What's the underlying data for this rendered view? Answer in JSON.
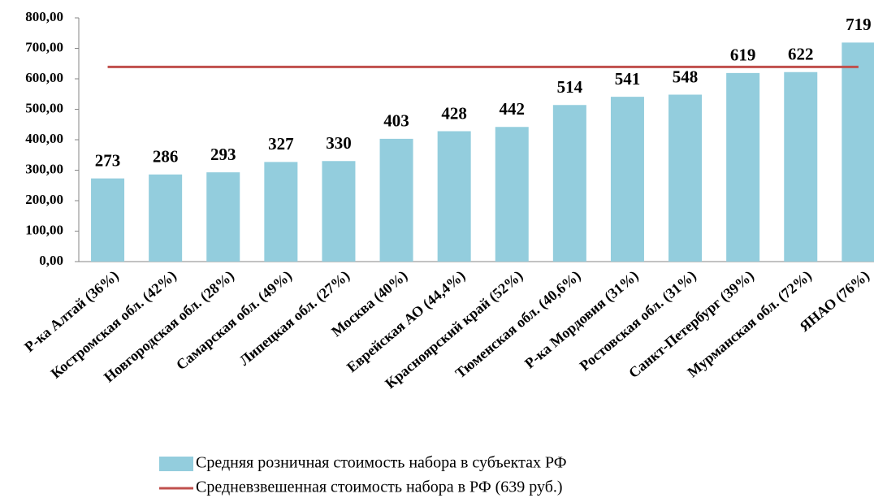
{
  "chart_data": {
    "type": "bar",
    "categories": [
      "Р-ка Алтай (36%)",
      "Костромская обл. (42%)",
      "Новгородская обл. (28%)",
      "Самарская обл. (49%)",
      "Липецкая обл. (27%)",
      "Москва (40%)",
      "Еврейская АО (44,4%)",
      "Красноярский край (52%)",
      "Тюменская обл. (40,6%)",
      "Р-ка Мордовия (31%)",
      "Ростовская обл. (31%)",
      "Санкт-Петербург (39%)",
      "Мурманская обл. (72%)",
      "ЯНАО (76%)"
    ],
    "series": [
      {
        "name": "Средняя розничная стоимость набора в субъектах РФ",
        "type": "bar",
        "color": "#93cddd",
        "values": [
          273,
          286,
          293,
          327,
          330,
          403,
          428,
          442,
          514,
          541,
          548,
          619,
          622,
          719
        ]
      },
      {
        "name": "Средневзвешенная стоимость набора в РФ (639 руб.)",
        "type": "line",
        "color": "#c0504d",
        "values": [
          639,
          639,
          639,
          639,
          639,
          639,
          639,
          639,
          639,
          639,
          639,
          639,
          639,
          639
        ]
      }
    ],
    "ylim": [
      0,
      800
    ],
    "yticks": [
      {
        "value": 0,
        "label": "0,00"
      },
      {
        "value": 100,
        "label": "100,00"
      },
      {
        "value": 200,
        "label": "200,00"
      },
      {
        "value": 300,
        "label": "300,00"
      },
      {
        "value": 400,
        "label": "400,00"
      },
      {
        "value": 500,
        "label": "500,00"
      },
      {
        "value": 600,
        "label": "600,00"
      },
      {
        "value": 700,
        "label": "700,00"
      },
      {
        "value": 800,
        "label": "800,00"
      }
    ],
    "grid": false,
    "legend": "bottom"
  }
}
